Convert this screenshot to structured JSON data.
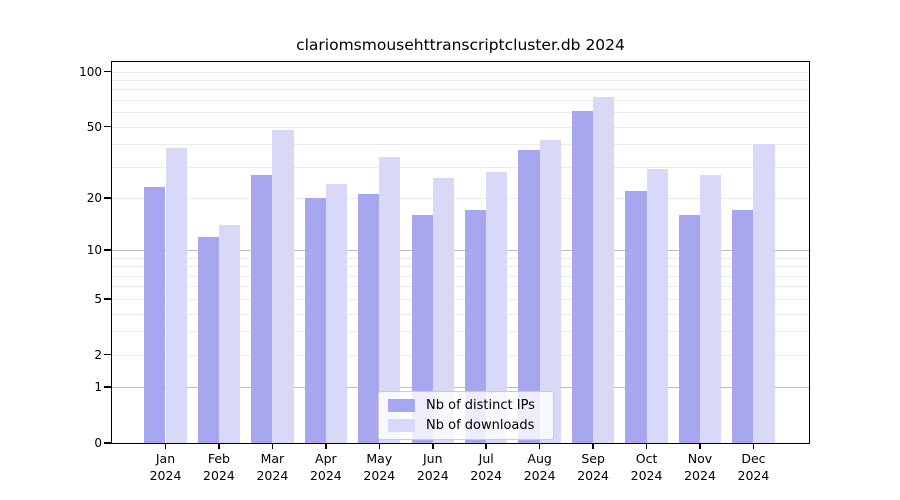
{
  "title": "clariomsmousehttranscriptcluster.db 2024",
  "colors": {
    "ips_bar": "#a7a7f0",
    "downloads_bar": "#d8d8f7",
    "grid_minor": "#ececec",
    "grid_major": "#bdbdbd",
    "axis": "#000000",
    "background": "#ffffff"
  },
  "legend": {
    "items": [
      {
        "label": "Nb of distinct IPs",
        "series": "ips"
      },
      {
        "label": "Nb of downloads",
        "series": "downloads"
      }
    ]
  },
  "y_axis": {
    "ticks": [
      {
        "label": "100",
        "value": 100
      },
      {
        "label": "50",
        "value": 50
      },
      {
        "label": "20",
        "value": 20
      },
      {
        "label": "10",
        "value": 10
      },
      {
        "label": "5",
        "value": 5
      },
      {
        "label": "2",
        "value": 2
      },
      {
        "label": "1",
        "value": 1
      },
      {
        "label": "0",
        "value": 0
      }
    ]
  },
  "x_axis": {
    "months": [
      "Jan",
      "Feb",
      "Mar",
      "Apr",
      "May",
      "Jun",
      "Jul",
      "Aug",
      "Sep",
      "Oct",
      "Nov",
      "Dec"
    ],
    "year": "2024"
  },
  "chart_data": {
    "type": "bar",
    "title": "clariomsmousehttranscriptcluster.db 2024",
    "categories": [
      "Jan 2024",
      "Feb 2024",
      "Mar 2024",
      "Apr 2024",
      "May 2024",
      "Jun 2024",
      "Jul 2024",
      "Aug 2024",
      "Sep 2024",
      "Oct 2024",
      "Nov 2024",
      "Dec 2024"
    ],
    "series": [
      {
        "name": "Nb of distinct IPs",
        "color": "#a7a7f0",
        "values": [
          23,
          12,
          27,
          20,
          21,
          16,
          17,
          37,
          61,
          22,
          16,
          17
        ]
      },
      {
        "name": "Nb of downloads",
        "color": "#d8d8f7",
        "values": [
          38,
          14,
          48,
          24,
          34,
          26,
          28,
          42,
          73,
          29,
          27,
          40
        ]
      }
    ],
    "xlabel": "",
    "ylabel": "",
    "yscale": "log10(value+1)",
    "yticks": [
      0,
      1,
      2,
      5,
      10,
      20,
      50,
      100
    ],
    "grid_minor_values": [
      2,
      3,
      4,
      5,
      6,
      7,
      8,
      9,
      20,
      30,
      40,
      50,
      60,
      70,
      80,
      90,
      100
    ],
    "grid_major_values": [
      1,
      10
    ],
    "ylim": [
      0,
      113
    ],
    "grid": true,
    "legend_position": "lower center inside"
  }
}
